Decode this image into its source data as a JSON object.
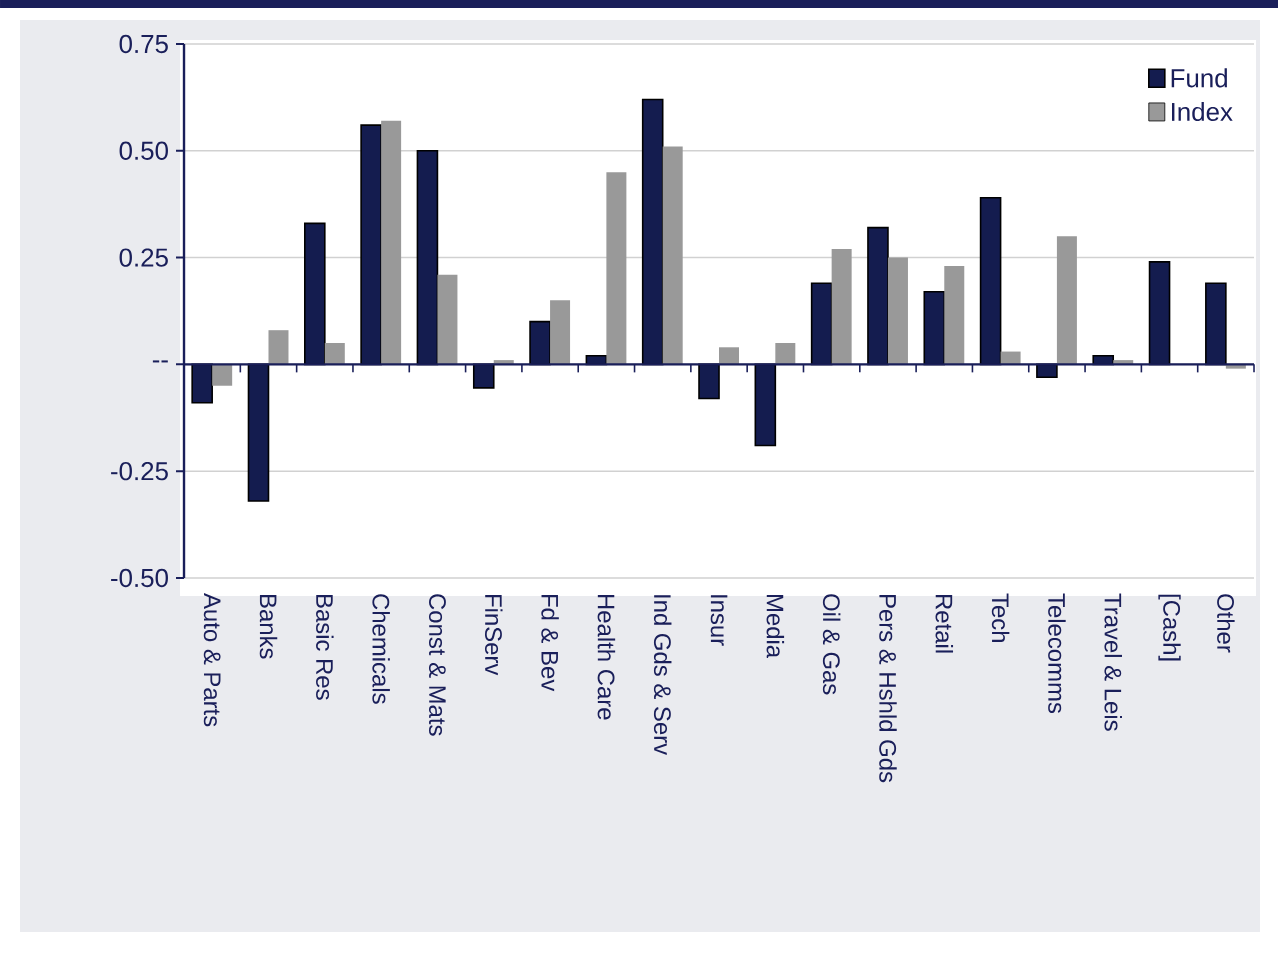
{
  "chart_data": {
    "type": "bar",
    "categories": [
      "Auto & Parts",
      "Banks",
      "Basic Res",
      "Chemicals",
      "Const & Mats",
      "FinServ",
      "Fd & Bev",
      "Health Care",
      "Ind Gds & Serv",
      "Insur",
      "Media",
      "Oil & Gas",
      "Pers & Hshld Gds",
      "Retail",
      "Tech",
      "Telecomms",
      "Travel & Leis",
      "[Cash]",
      "Other"
    ],
    "series": [
      {
        "name": "Fund",
        "color": "#141c4f",
        "values": [
          -0.09,
          -0.32,
          0.33,
          0.56,
          0.5,
          -0.055,
          0.1,
          0.02,
          0.62,
          -0.08,
          -0.19,
          0.19,
          0.32,
          0.17,
          0.39,
          -0.03,
          0.02,
          0.24,
          0.19
        ]
      },
      {
        "name": "Index",
        "color": "#999999",
        "values": [
          -0.05,
          0.08,
          0.05,
          0.57,
          0.21,
          0.01,
          0.15,
          0.45,
          0.51,
          0.04,
          0.05,
          0.27,
          0.25,
          0.23,
          0.03,
          0.3,
          0.01,
          null,
          -0.01
        ]
      }
    ],
    "ylim": [
      -0.5,
      0.75
    ],
    "yticks": [
      {
        "value": -0.5,
        "label": "-0.50"
      },
      {
        "value": -0.25,
        "label": "-0.25"
      },
      {
        "value": 0,
        "label": "--"
      },
      {
        "value": 0.25,
        "label": "0.25"
      },
      {
        "value": 0.5,
        "label": "0.50"
      },
      {
        "value": 0.75,
        "label": "0.75"
      }
    ],
    "grid": "y",
    "legend": "top right"
  }
}
